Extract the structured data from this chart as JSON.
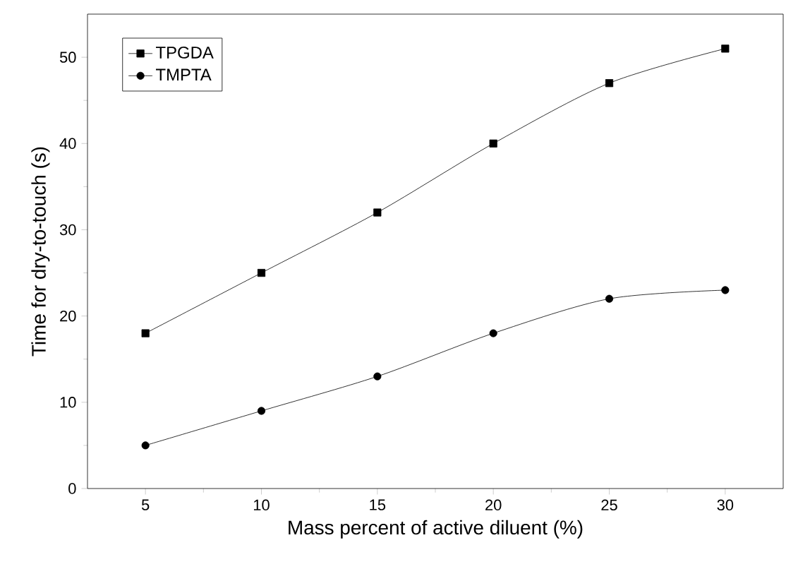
{
  "chart_data": {
    "type": "line",
    "xlabel": "Mass percent of active diluent (%)",
    "ylabel": "Time for dry-to-touch (s)",
    "x": [
      5,
      10,
      15,
      20,
      25,
      30
    ],
    "series": [
      {
        "name": "TPGDA",
        "color": "#000000",
        "marker": "square",
        "values": [
          18,
          25,
          32,
          40,
          47,
          51
        ]
      },
      {
        "name": "TMPTA",
        "color": "#000000",
        "marker": "circle",
        "values": [
          5,
          9,
          13,
          18,
          22,
          23
        ]
      }
    ],
    "xlim": [
      2.5,
      32.5
    ],
    "xticks": [
      5,
      10,
      15,
      20,
      25,
      30
    ],
    "ylim": [
      0,
      55
    ],
    "yticks": [
      0,
      10,
      20,
      30,
      40,
      50
    ],
    "legend": "top left",
    "grid": false,
    "line_style": "solid"
  }
}
